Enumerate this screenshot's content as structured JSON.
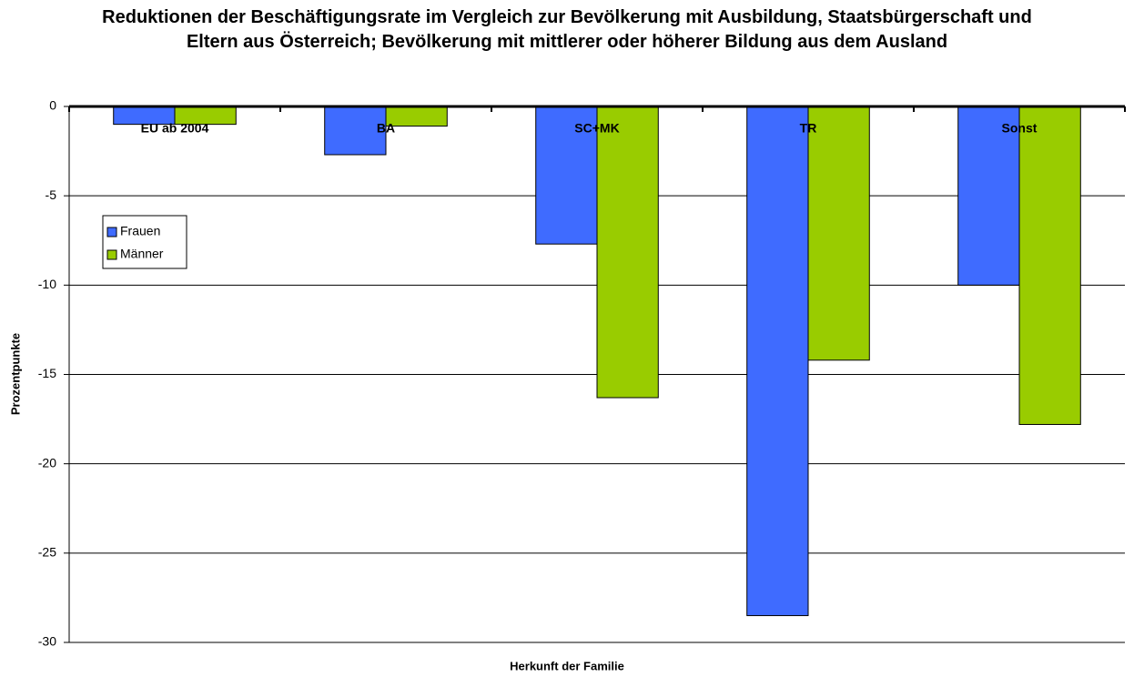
{
  "chart_data": {
    "type": "bar",
    "title": "Reduktionen der Beschäftigungsrate im Vergleich zur Bevölkerung mit Ausbildung, Staatsbürgerschaft und Eltern aus Österreich; Bevölkerung mit mittlerer oder höherer Bildung aus dem Ausland",
    "x_label": "Herkunft der Familie",
    "y_label": "Prozentpunkte",
    "categories": [
      "EU ab 2004",
      "BA",
      "SC+MK",
      "TR",
      "Sonst"
    ],
    "series": [
      {
        "name": "Frauen",
        "color": "#3f6bff",
        "values": [
          -1.0,
          -2.7,
          -7.7,
          -28.5,
          -10.0
        ]
      },
      {
        "name": "Männer",
        "color": "#99cc00",
        "values": [
          -1.0,
          -1.1,
          -16.3,
          -14.2,
          -17.8
        ]
      }
    ],
    "ylim": [
      -30,
      0
    ],
    "yticks": [
      -30,
      -25,
      -20,
      -15,
      -10,
      -5,
      0
    ],
    "grid": true,
    "legend": "left"
  }
}
